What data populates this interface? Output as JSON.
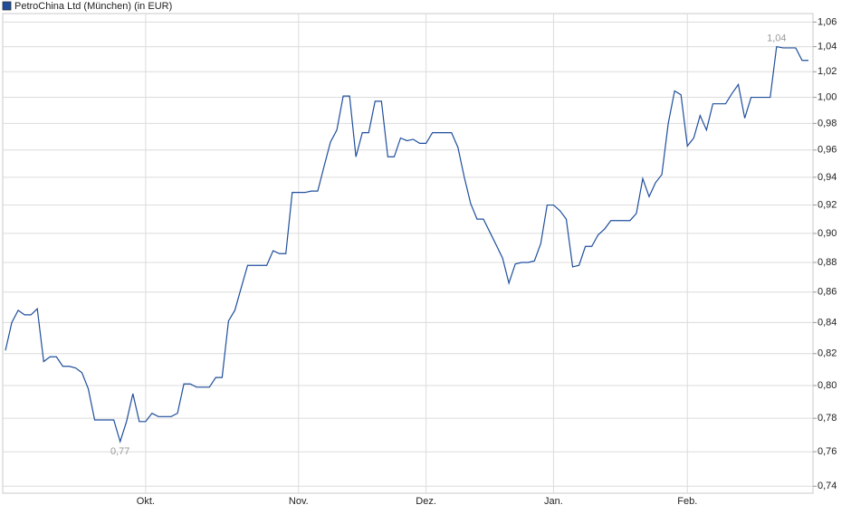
{
  "chart_data": {
    "type": "line",
    "log_scale": true,
    "grid": true,
    "legend": "top-left",
    "categories": [
      null,
      null,
      null,
      null,
      null,
      null,
      null,
      null,
      null,
      null,
      null,
      null,
      null,
      null,
      null,
      null,
      null,
      null,
      null,
      null,
      null,
      null,
      "Okt.",
      null,
      null,
      null,
      null,
      null,
      null,
      null,
      null,
      null,
      null,
      null,
      null,
      null,
      null,
      null,
      null,
      null,
      null,
      null,
      null,
      null,
      null,
      null,
      "Nov.",
      null,
      null,
      null,
      null,
      null,
      null,
      null,
      null,
      null,
      null,
      null,
      null,
      null,
      null,
      null,
      null,
      null,
      null,
      null,
      "Dez.",
      null,
      null,
      null,
      null,
      null,
      null,
      null,
      null,
      null,
      null,
      null,
      null,
      null,
      null,
      null,
      null,
      null,
      null,
      null,
      "Jan.",
      null,
      null,
      null,
      null,
      null,
      null,
      null,
      null,
      null,
      null,
      null,
      null,
      null,
      null,
      null,
      null,
      null,
      null,
      null,
      null,
      "Feb.",
      null,
      null,
      null,
      null,
      null,
      null,
      null,
      null,
      null,
      null,
      null,
      null,
      null,
      null,
      null,
      null,
      null,
      null,
      null
    ],
    "series": [
      {
        "name": "PetroChina Ltd (München) (in EUR)",
        "color": "#1f4e9c",
        "values": [
          0.822,
          0.84,
          0.848,
          0.845,
          0.845,
          0.849,
          0.815,
          0.818,
          0.818,
          0.812,
          0.812,
          0.811,
          0.808,
          0.798,
          0.779,
          0.779,
          0.779,
          0.779,
          0.766,
          0.778,
          0.795,
          0.778,
          0.778,
          0.783,
          0.781,
          0.781,
          0.781,
          0.783,
          0.801,
          0.801,
          0.799,
          0.799,
          0.799,
          0.805,
          0.805,
          0.841,
          0.848,
          0.863,
          0.878,
          0.878,
          0.878,
          0.878,
          0.888,
          0.886,
          0.886,
          0.929,
          0.929,
          0.929,
          0.93,
          0.93,
          0.948,
          0.966,
          0.975,
          1.001,
          1.001,
          0.955,
          0.973,
          0.973,
          0.997,
          0.997,
          0.955,
          0.955,
          0.969,
          0.967,
          0.968,
          0.965,
          0.965,
          0.973,
          0.973,
          0.973,
          0.973,
          0.962,
          0.94,
          0.921,
          0.91,
          0.91,
          0.901,
          0.892,
          0.883,
          0.866,
          0.879,
          0.88,
          0.88,
          0.881,
          0.893,
          0.92,
          0.92,
          0.916,
          0.91,
          0.877,
          0.878,
          0.891,
          0.891,
          0.899,
          0.903,
          0.909,
          0.909,
          0.909,
          0.909,
          0.914,
          0.939,
          0.926,
          0.936,
          0.942,
          0.98,
          1.005,
          1.002,
          0.963,
          0.969,
          0.986,
          0.975,
          0.995,
          0.995,
          0.995,
          1.003,
          1.01,
          0.984,
          1.0,
          1.0,
          1.0,
          1.0,
          1.04,
          1.039,
          1.039,
          1.039,
          1.029,
          1.029
        ]
      }
    ],
    "annotations": [
      {
        "label": "0,77",
        "value": 0.766
      },
      {
        "label": "1,04",
        "value": 1.04
      }
    ],
    "ylim": [
      0.736,
      1.067
    ],
    "yticks": [
      {
        "value": 0.74,
        "label": "0,74"
      },
      {
        "value": 0.76,
        "label": "0,76"
      },
      {
        "value": 0.78,
        "label": "0,78"
      },
      {
        "value": 0.8,
        "label": "0,80"
      },
      {
        "value": 0.82,
        "label": "0,82"
      },
      {
        "value": 0.84,
        "label": "0,84"
      },
      {
        "value": 0.86,
        "label": "0,86"
      },
      {
        "value": 0.88,
        "label": "0,88"
      },
      {
        "value": 0.9,
        "label": "0,90"
      },
      {
        "value": 0.92,
        "label": "0,92"
      },
      {
        "value": 0.94,
        "label": "0,94"
      },
      {
        "value": 0.96,
        "label": "0,96"
      },
      {
        "value": 0.98,
        "label": "0,98"
      },
      {
        "value": 1.0,
        "label": "1,00"
      },
      {
        "value": 1.02,
        "label": "1,02"
      },
      {
        "value": 1.04,
        "label": "1,04"
      },
      {
        "value": 1.06,
        "label": "1,06"
      }
    ]
  }
}
